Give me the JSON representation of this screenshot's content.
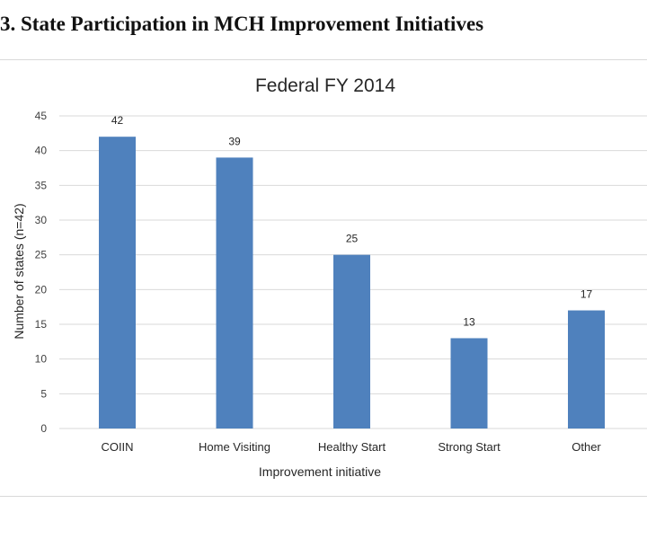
{
  "heading": "3. State Participation in MCH Improvement Initiatives",
  "chart_data": {
    "type": "bar",
    "title": "Federal FY 2014",
    "xlabel": "Improvement initiative",
    "ylabel": "Number of states (n=42)",
    "categories": [
      "COIIN",
      "Home Visiting",
      "Healthy Start",
      "Strong Start",
      "Other"
    ],
    "values": [
      42,
      39,
      25,
      13,
      17
    ],
    "ylim": [
      0,
      45
    ],
    "yticks": [
      0,
      5,
      10,
      15,
      20,
      25,
      30,
      35,
      40,
      45
    ],
    "grid": true,
    "legend": "none",
    "bar_color": "#4f81bd",
    "grid_color": "#d9d9d9"
  }
}
